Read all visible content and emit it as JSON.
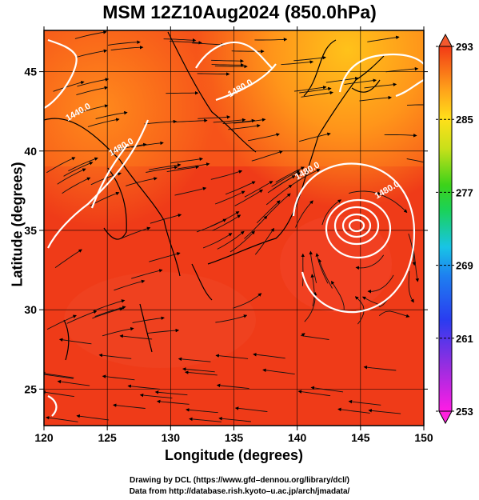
{
  "title": "MSM 12Z10Aug2024 (850.0hPa)",
  "xlabel": "Longitude (degrees)",
  "ylabel": "Latitude  (degrees)",
  "credits": {
    "line1": "Drawing by DCL (https://www.gfd–dennou.org/library/dcl/)",
    "line2": "Data from http://database.rish.kyoto–u.ac.jp/arch/jmadata/"
  },
  "x_ticks": [
    {
      "value": 120,
      "label": "120"
    },
    {
      "value": 125,
      "label": "125"
    },
    {
      "value": 130,
      "label": "130"
    },
    {
      "value": 135,
      "label": "135"
    },
    {
      "value": 140,
      "label": "140"
    },
    {
      "value": 145,
      "label": "145"
    },
    {
      "value": 150,
      "label": "150"
    }
  ],
  "y_ticks": [
    {
      "value": 25,
      "label": "25"
    },
    {
      "value": 30,
      "label": "30"
    },
    {
      "value": 35,
      "label": "35"
    },
    {
      "value": 40,
      "label": "40"
    },
    {
      "value": 45,
      "label": "45"
    }
  ],
  "lon_range": [
    120,
    150
  ],
  "lat_range": [
    22.7,
    47.6
  ],
  "colorbar": {
    "range": [
      253,
      293
    ],
    "ticks": [
      {
        "value": 253,
        "label": "253"
      },
      {
        "value": 261,
        "label": "261"
      },
      {
        "value": 269,
        "label": "269"
      },
      {
        "value": 277,
        "label": "277"
      },
      {
        "value": 285,
        "label": "285"
      },
      {
        "value": 293,
        "label": "293"
      }
    ]
  },
  "contour_labels": [
    {
      "text": "1480.0",
      "lon": 135.6,
      "lat": 43.8
    },
    {
      "text": "1480.0",
      "lon": 126.2,
      "lat": 40.1
    },
    {
      "text": "1440.0",
      "lon": 122.8,
      "lat": 42.3
    },
    {
      "text": "1480.0",
      "lon": 140.9,
      "lat": 38.6
    },
    {
      "text": "1480.0",
      "lon": 147.2,
      "lat": 37.4
    }
  ],
  "colors": {
    "field_base": "#f23a16",
    "field_warm_north": "#ff8c1a",
    "contour": "#ffffff",
    "coast": "#000000"
  }
}
